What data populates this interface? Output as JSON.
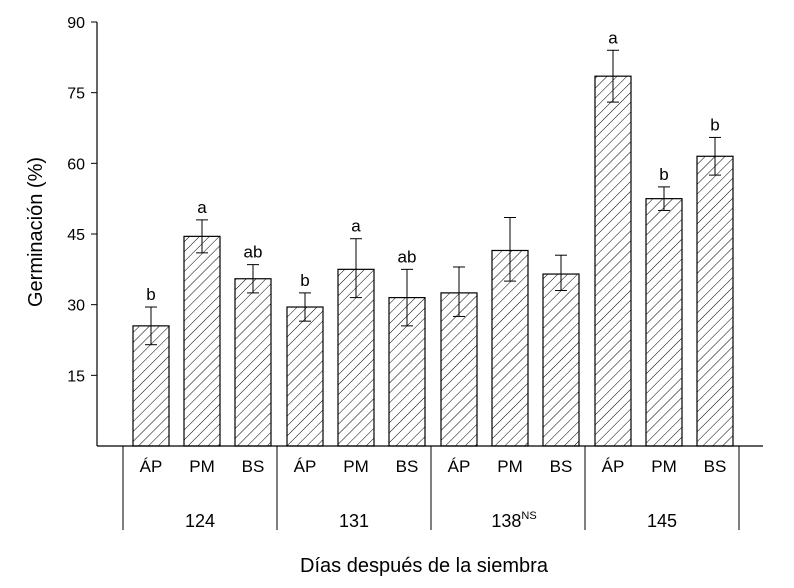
{
  "chart_data": {
    "type": "bar",
    "ylabel": "Germinación (%)",
    "xlabel": "Días después de la siembra",
    "ylim": [
      0,
      90
    ],
    "yticks": [
      15,
      30,
      45,
      60,
      75,
      90
    ],
    "grid": false,
    "pattern": "diagonal-hatch",
    "groups": [
      {
        "label": "124",
        "superscript": "",
        "bars": [
          {
            "category": "ÁP",
            "value": 25.5,
            "err_low": 21.5,
            "err_high": 29.5,
            "letter": "b"
          },
          {
            "category": "PM",
            "value": 44.5,
            "err_low": 41.0,
            "err_high": 48.0,
            "letter": "a"
          },
          {
            "category": "BS",
            "value": 35.5,
            "err_low": 32.5,
            "err_high": 38.5,
            "letter": "ab"
          }
        ]
      },
      {
        "label": "131",
        "superscript": "",
        "bars": [
          {
            "category": "ÁP",
            "value": 29.5,
            "err_low": 26.5,
            "err_high": 32.5,
            "letter": "b"
          },
          {
            "category": "PM",
            "value": 37.5,
            "err_low": 31.5,
            "err_high": 44.0,
            "letter": "a"
          },
          {
            "category": "BS",
            "value": 31.5,
            "err_low": 25.5,
            "err_high": 37.5,
            "letter": "ab"
          }
        ]
      },
      {
        "label": "138",
        "superscript": "NS",
        "bars": [
          {
            "category": "ÁP",
            "value": 32.5,
            "err_low": 27.5,
            "err_high": 38.0,
            "letter": ""
          },
          {
            "category": "PM",
            "value": 41.5,
            "err_low": 35.0,
            "err_high": 48.5,
            "letter": ""
          },
          {
            "category": "BS",
            "value": 36.5,
            "err_low": 33.0,
            "err_high": 40.5,
            "letter": ""
          }
        ]
      },
      {
        "label": "145",
        "superscript": "",
        "bars": [
          {
            "category": "ÁP",
            "value": 78.5,
            "err_low": 73.0,
            "err_high": 84.0,
            "letter": "a"
          },
          {
            "category": "PM",
            "value": 52.5,
            "err_low": 50.0,
            "err_high": 55.0,
            "letter": "b"
          },
          {
            "category": "BS",
            "value": 61.5,
            "err_low": 57.5,
            "err_high": 65.5,
            "letter": "b"
          }
        ]
      }
    ]
  }
}
